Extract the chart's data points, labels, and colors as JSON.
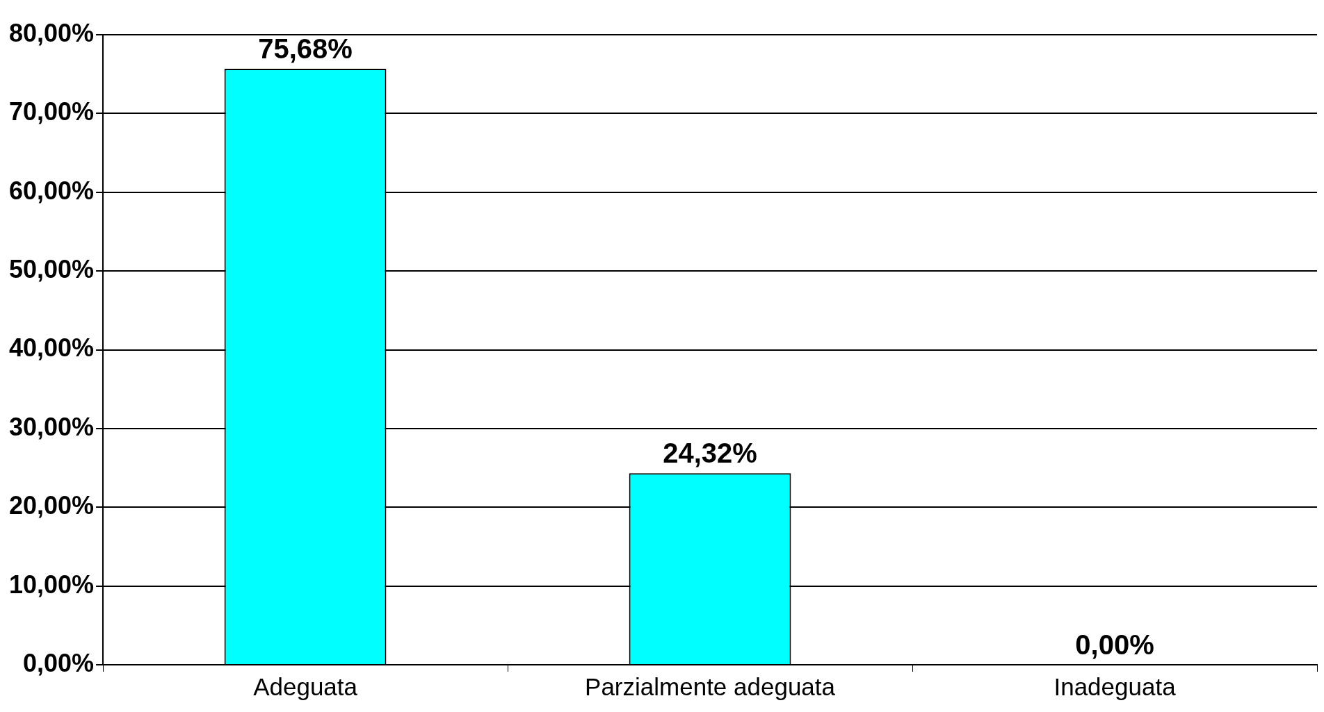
{
  "chart_data": {
    "type": "bar",
    "categories": [
      "Adeguata",
      "Parzialmente adeguata",
      "Inadeguata"
    ],
    "values": [
      75.68,
      24.32,
      0
    ],
    "value_labels": [
      "75,68%",
      "24,32%",
      "0,00%"
    ],
    "color": "#00ffff",
    "ylim": [
      0,
      80
    ],
    "yticks": [
      {
        "value": 0,
        "label": "0,00%"
      },
      {
        "value": 10,
        "label": "10,00%"
      },
      {
        "value": 20,
        "label": "20,00%"
      },
      {
        "value": 30,
        "label": "30,00%"
      },
      {
        "value": 40,
        "label": "40,00%"
      },
      {
        "value": 50,
        "label": "50,00%"
      },
      {
        "value": 60,
        "label": "60,00%"
      },
      {
        "value": 70,
        "label": "70,00%"
      },
      {
        "value": 80,
        "label": "80,00%"
      }
    ],
    "grid": "y",
    "legend": false
  }
}
